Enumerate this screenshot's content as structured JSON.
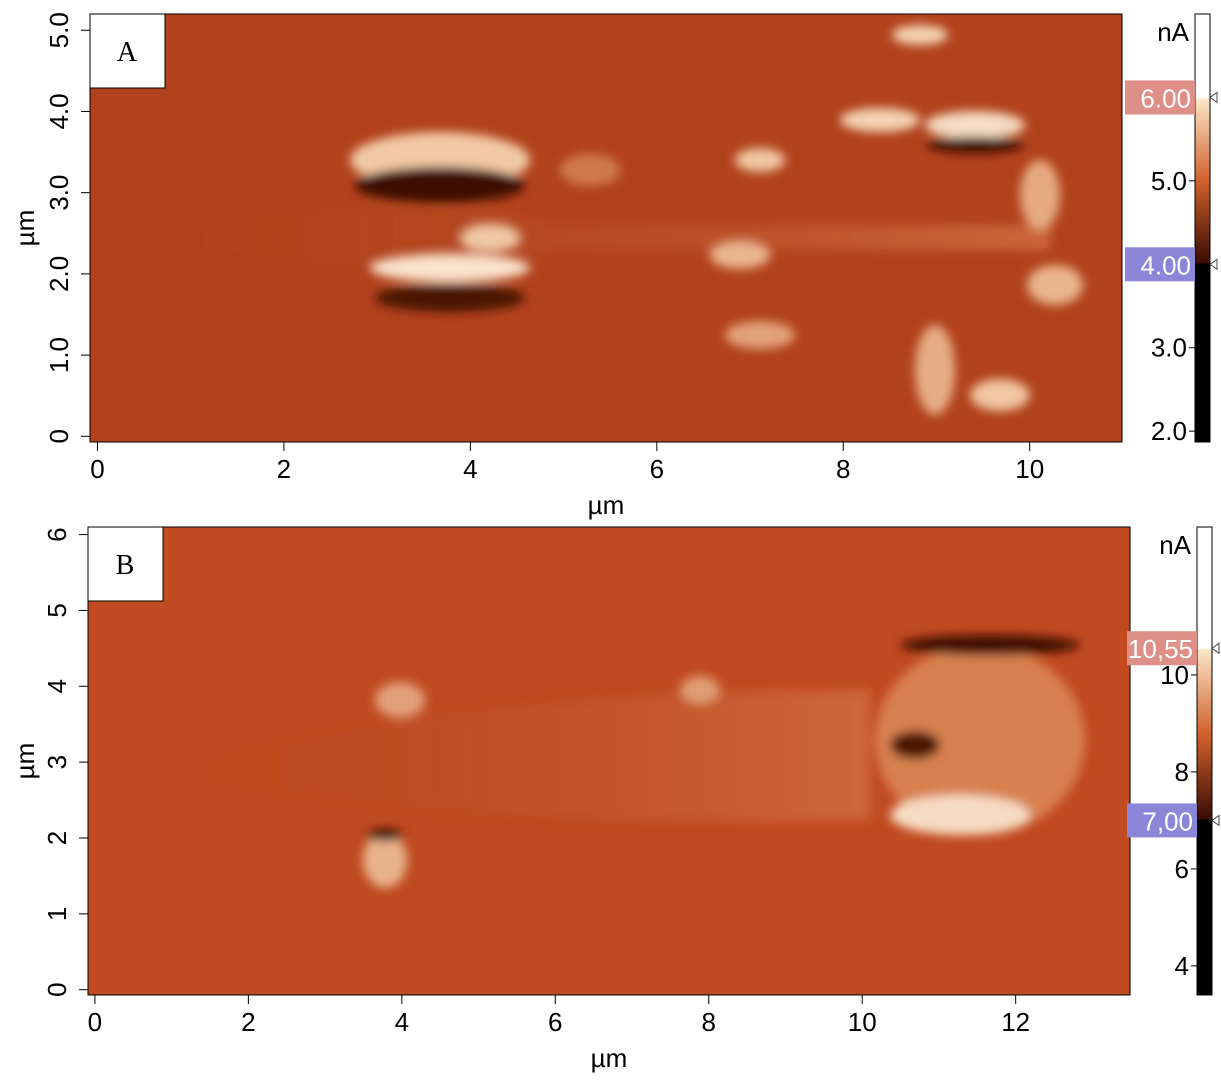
{
  "panels": [
    {
      "label": "A",
      "x_label": "µm",
      "y_label": "µm",
      "xlim": [
        -0.08,
        10.99
      ],
      "xticks": [
        0,
        2,
        4,
        6,
        8,
        10
      ],
      "ylim": [
        -0.07,
        5.2
      ],
      "yticks": [
        0,
        {
          "value": 1,
          "label": "1.0"
        },
        {
          "value": 2,
          "label": "2.0"
        },
        {
          "value": 3,
          "label": "3.0"
        },
        {
          "value": 4,
          "label": "4.0"
        },
        {
          "value": 5,
          "label": "5.0"
        }
      ],
      "colorbar": {
        "unit": "nA",
        "lim": [
          1.87,
          7.0
        ],
        "ticks": [
          {
            "value": 2,
            "label": "2.0"
          },
          {
            "value": 3,
            "label": "3.0"
          },
          {
            "value": 5,
            "label": "5.0"
          }
        ],
        "markers": [
          {
            "value": 6,
            "label": "6.00",
            "color": "#de8f88"
          },
          {
            "value": 4,
            "label": "4.00",
            "color": "#8c86d9"
          }
        ]
      }
    },
    {
      "label": "B",
      "x_label": "µm",
      "y_label": "µm",
      "xlim": [
        -0.09,
        13.49
      ],
      "xticks": [
        0,
        2,
        4,
        6,
        8,
        10,
        12
      ],
      "ylim": [
        -0.07,
        6.1
      ],
      "yticks": [
        0,
        1,
        2,
        3,
        4,
        5,
        6
      ],
      "colorbar": {
        "unit": "nA",
        "lim": [
          3.4,
          13.05
        ],
        "ticks": [
          4,
          6,
          8,
          10
        ],
        "markers": [
          {
            "value": 10.55,
            "label": "10,55",
            "color": "#de8f88"
          },
          {
            "value": 7,
            "label": "7,00",
            "color": "#8c86d9"
          }
        ]
      }
    }
  ]
}
